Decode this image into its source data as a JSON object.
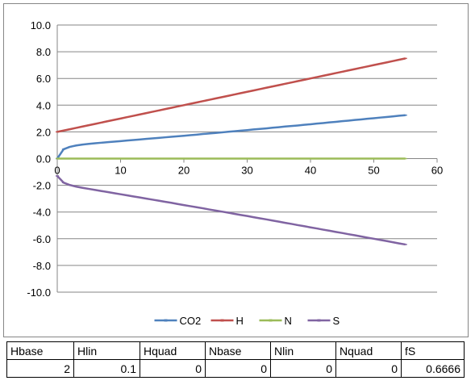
{
  "chart_data": {
    "type": "line",
    "title": "",
    "xlabel": "",
    "ylabel": "",
    "xlim": [
      0,
      60
    ],
    "ylim": [
      -10,
      10
    ],
    "xticks": [
      "0",
      "10",
      "20",
      "30",
      "40",
      "50",
      "60"
    ],
    "yticks": [
      "10.0",
      "8.0",
      "6.0",
      "4.0",
      "2.0",
      "0.0",
      "-2.0",
      "-4.0",
      "-6.0",
      "-8.0",
      "-10.0"
    ],
    "grid": "horizontal",
    "legend_position": "bottom",
    "x": [
      0,
      1,
      2,
      3,
      4,
      5,
      6,
      7,
      8,
      9,
      10,
      11,
      12,
      13,
      14,
      15,
      16,
      17,
      18,
      19,
      20,
      21,
      22,
      23,
      24,
      25,
      26,
      27,
      28,
      29,
      30,
      31,
      32,
      33,
      34,
      35,
      36,
      37,
      38,
      39,
      40,
      41,
      42,
      43,
      44,
      45,
      46,
      47,
      48,
      49,
      50,
      51,
      52,
      53,
      54,
      55
    ],
    "series": [
      {
        "name": "CO2",
        "color": "#4f81bd",
        "values": [
          0.0,
          0.7,
          0.88,
          0.98,
          1.05,
          1.1,
          1.15,
          1.19,
          1.23,
          1.27,
          1.31,
          1.35,
          1.39,
          1.43,
          1.47,
          1.51,
          1.55,
          1.59,
          1.63,
          1.67,
          1.71,
          1.75,
          1.79,
          1.84,
          1.88,
          1.92,
          1.96,
          2.01,
          2.05,
          2.09,
          2.13,
          2.18,
          2.22,
          2.26,
          2.31,
          2.35,
          2.4,
          2.44,
          2.48,
          2.53,
          2.57,
          2.62,
          2.66,
          2.71,
          2.75,
          2.8,
          2.84,
          2.89,
          2.93,
          2.98,
          3.02,
          3.07,
          3.11,
          3.16,
          3.21,
          3.25
        ]
      },
      {
        "name": "H",
        "color": "#c0504d",
        "values": [
          2.0,
          2.1,
          2.2,
          2.3,
          2.4,
          2.5,
          2.6,
          2.7,
          2.8,
          2.9,
          3.0,
          3.1,
          3.2,
          3.3,
          3.4,
          3.5,
          3.6,
          3.7,
          3.8,
          3.9,
          4.0,
          4.1,
          4.2,
          4.3,
          4.4,
          4.5,
          4.6,
          4.7,
          4.8,
          4.9,
          5.0,
          5.1,
          5.2,
          5.3,
          5.4,
          5.5,
          5.6,
          5.7,
          5.8,
          5.9,
          6.0,
          6.1,
          6.2,
          6.3,
          6.4,
          6.5,
          6.6,
          6.7,
          6.8,
          6.9,
          7.0,
          7.1,
          7.2,
          7.3,
          7.4,
          7.5
        ]
      },
      {
        "name": "N",
        "color": "#9bbb59",
        "values": [
          0,
          0,
          0,
          0,
          0,
          0,
          0,
          0,
          0,
          0,
          0,
          0,
          0,
          0,
          0,
          0,
          0,
          0,
          0,
          0,
          0,
          0,
          0,
          0,
          0,
          0,
          0,
          0,
          0,
          0,
          0,
          0,
          0,
          0,
          0,
          0,
          0,
          0,
          0,
          0,
          0,
          0,
          0,
          0,
          0,
          0,
          0,
          0,
          0,
          0,
          0,
          0,
          0,
          0,
          0,
          0
        ]
      },
      {
        "name": "S",
        "color": "#8064a2",
        "values": [
          -1.3,
          -1.8,
          -1.98,
          -2.1,
          -2.19,
          -2.27,
          -2.35,
          -2.43,
          -2.51,
          -2.59,
          -2.67,
          -2.75,
          -2.83,
          -2.91,
          -2.99,
          -3.07,
          -3.15,
          -3.23,
          -3.31,
          -3.4,
          -3.48,
          -3.56,
          -3.64,
          -3.72,
          -3.81,
          -3.89,
          -3.97,
          -4.05,
          -4.14,
          -4.22,
          -4.3,
          -4.39,
          -4.47,
          -4.55,
          -4.64,
          -4.72,
          -4.81,
          -4.89,
          -4.98,
          -5.06,
          -5.15,
          -5.23,
          -5.32,
          -5.4,
          -5.49,
          -5.57,
          -5.66,
          -5.74,
          -5.83,
          -5.92,
          -6.0,
          -6.09,
          -6.17,
          -6.26,
          -6.35,
          -6.43
        ]
      }
    ]
  },
  "params_table": {
    "headers": [
      "Hbase",
      "Hlin",
      "Hquad",
      "Nbase",
      "Nlin",
      "Nquad",
      "fS"
    ],
    "values": [
      "2",
      "0.1",
      "0",
      "0",
      "0",
      "0",
      "0.6666"
    ]
  }
}
